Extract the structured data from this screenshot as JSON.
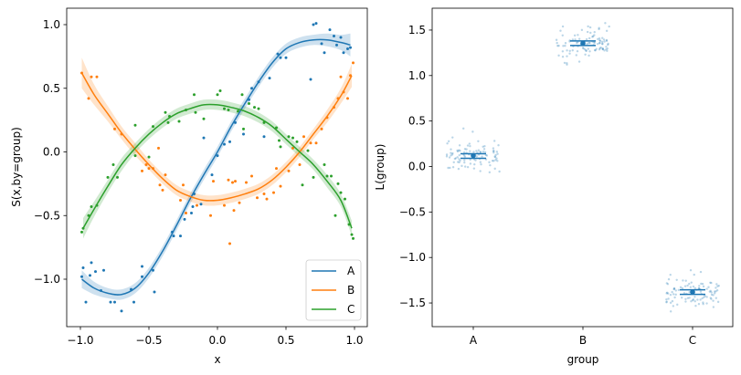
{
  "chart_data": [
    {
      "type": "line",
      "title": "",
      "xlabel": "x",
      "ylabel": "S(x,by=group)",
      "xlim": [
        -1.1,
        1.1
      ],
      "ylim": [
        -1.3,
        1.12
      ],
      "xticks": [
        -1.0,
        -0.5,
        0.0,
        0.5,
        1.0
      ],
      "xtick_labels": [
        "−1.0",
        "−0.5",
        "0.0",
        "0.5",
        "1.0"
      ],
      "yticks": [
        1.0,
        0.5,
        0.0,
        -0.5,
        -1.0
      ],
      "ytick_labels": [
        "1.0",
        "0.5",
        "0.0",
        "−0.5",
        "−1.0"
      ],
      "legend_position": "lower-right",
      "series": [
        {
          "name": "A",
          "color": "#1f77b4",
          "x": [
            -0.99,
            -0.9,
            -0.8,
            -0.7,
            -0.6,
            -0.5,
            -0.4,
            -0.3,
            -0.2,
            -0.1,
            0.0,
            0.1,
            0.2,
            0.3,
            0.4,
            0.5,
            0.6,
            0.7,
            0.8,
            0.9,
            0.97
          ],
          "y": [
            -1.0,
            -1.07,
            -1.11,
            -1.12,
            -1.07,
            -0.95,
            -0.78,
            -0.58,
            -0.37,
            -0.18,
            0.0,
            0.2,
            0.38,
            0.55,
            0.7,
            0.81,
            0.86,
            0.88,
            0.88,
            0.86,
            0.84
          ],
          "ci_halfwidth": [
            0.07,
            0.05,
            0.04,
            0.04,
            0.04,
            0.04,
            0.04,
            0.04,
            0.04,
            0.04,
            0.04,
            0.04,
            0.04,
            0.04,
            0.04,
            0.04,
            0.04,
            0.04,
            0.05,
            0.06,
            0.09
          ],
          "points": [
            [
              -0.99,
              -0.98
            ],
            [
              -0.98,
              -0.91
            ],
            [
              -0.96,
              -1.18
            ],
            [
              -0.93,
              -0.97
            ],
            [
              -0.92,
              -0.87
            ],
            [
              -0.89,
              -0.94
            ],
            [
              -0.85,
              -1.09
            ],
            [
              -0.83,
              -0.93
            ],
            [
              -0.78,
              -1.18
            ],
            [
              -0.75,
              -1.18
            ],
            [
              -0.7,
              -1.25
            ],
            [
              -0.63,
              -1.08
            ],
            [
              -0.61,
              -1.18
            ],
            [
              -0.55,
              -0.9
            ],
            [
              -0.55,
              -0.98
            ],
            [
              -0.47,
              -0.93
            ],
            [
              -0.46,
              -1.1
            ],
            [
              -0.33,
              -0.63
            ],
            [
              -0.32,
              -0.66
            ],
            [
              -0.27,
              -0.66
            ],
            [
              -0.24,
              -0.53
            ],
            [
              -0.19,
              -0.48
            ],
            [
              -0.18,
              -0.43
            ],
            [
              -0.17,
              -0.33
            ],
            [
              -0.12,
              -0.41
            ],
            [
              -0.1,
              0.11
            ],
            [
              -0.04,
              -0.18
            ],
            [
              0.0,
              -0.03
            ],
            [
              0.05,
              0.06
            ],
            [
              0.09,
              0.08
            ],
            [
              0.13,
              0.23
            ],
            [
              0.19,
              0.14
            ],
            [
              0.23,
              0.41
            ],
            [
              0.25,
              0.5
            ],
            [
              0.3,
              0.55
            ],
            [
              0.34,
              0.12
            ],
            [
              0.38,
              0.58
            ],
            [
              0.44,
              0.77
            ],
            [
              0.46,
              0.74
            ],
            [
              0.5,
              0.74
            ],
            [
              0.68,
              0.57
            ],
            [
              0.7,
              1.0
            ],
            [
              0.72,
              1.01
            ],
            [
              0.76,
              0.85
            ],
            [
              0.78,
              0.78
            ],
            [
              0.82,
              0.96
            ],
            [
              0.85,
              0.91
            ],
            [
              0.87,
              0.84
            ],
            [
              0.9,
              0.9
            ],
            [
              0.92,
              0.78
            ],
            [
              0.95,
              0.81
            ],
            [
              0.97,
              0.82
            ]
          ]
        },
        {
          "name": "B",
          "color": "#ff7f0e",
          "x": [
            -0.99,
            -0.9,
            -0.8,
            -0.7,
            -0.6,
            -0.5,
            -0.4,
            -0.3,
            -0.2,
            -0.1,
            0.0,
            0.1,
            0.2,
            0.3,
            0.4,
            0.5,
            0.6,
            0.7,
            0.8,
            0.9,
            0.98
          ],
          "y": [
            0.62,
            0.45,
            0.3,
            0.15,
            0.02,
            -0.1,
            -0.21,
            -0.3,
            -0.35,
            -0.38,
            -0.38,
            -0.36,
            -0.33,
            -0.29,
            -0.22,
            -0.12,
            0.0,
            0.14,
            0.28,
            0.44,
            0.6
          ],
          "ci_halfwidth": [
            0.12,
            0.08,
            0.06,
            0.05,
            0.05,
            0.04,
            0.04,
            0.04,
            0.04,
            0.04,
            0.04,
            0.04,
            0.04,
            0.04,
            0.04,
            0.04,
            0.04,
            0.04,
            0.05,
            0.06,
            0.09
          ],
          "points": [
            [
              -0.99,
              0.62
            ],
            [
              -0.94,
              0.42
            ],
            [
              -0.92,
              0.59
            ],
            [
              -0.88,
              0.59
            ],
            [
              -0.75,
              0.18
            ],
            [
              -0.7,
              0.14
            ],
            [
              -0.55,
              -0.15
            ],
            [
              -0.52,
              -0.1
            ],
            [
              -0.5,
              -0.13
            ],
            [
              -0.47,
              -0.13
            ],
            [
              -0.43,
              0.03
            ],
            [
              -0.42,
              -0.26
            ],
            [
              -0.4,
              -0.3
            ],
            [
              -0.38,
              -0.18
            ],
            [
              -0.27,
              -0.38
            ],
            [
              -0.25,
              -0.26
            ],
            [
              -0.23,
              -0.48
            ],
            [
              -0.15,
              -0.42
            ],
            [
              -0.05,
              -0.5
            ],
            [
              -0.03,
              -0.23
            ],
            [
              0.05,
              -0.42
            ],
            [
              0.08,
              -0.22
            ],
            [
              0.09,
              -0.72
            ],
            [
              0.11,
              -0.24
            ],
            [
              0.12,
              -0.46
            ],
            [
              0.13,
              -0.23
            ],
            [
              0.16,
              -0.4
            ],
            [
              0.21,
              -0.24
            ],
            [
              0.25,
              -0.19
            ],
            [
              0.29,
              -0.36
            ],
            [
              0.34,
              -0.33
            ],
            [
              0.36,
              -0.37
            ],
            [
              0.41,
              -0.32
            ],
            [
              0.43,
              -0.13
            ],
            [
              0.46,
              -0.27
            ],
            [
              0.52,
              -0.15
            ],
            [
              0.55,
              0.03
            ],
            [
              0.6,
              -0.1
            ],
            [
              0.63,
              0.12
            ],
            [
              0.68,
              0.07
            ],
            [
              0.72,
              0.07
            ],
            [
              0.76,
              0.18
            ],
            [
              0.8,
              0.27
            ],
            [
              0.85,
              0.35
            ],
            [
              0.88,
              0.42
            ],
            [
              0.9,
              0.59
            ],
            [
              0.92,
              0.47
            ],
            [
              0.95,
              0.42
            ],
            [
              0.97,
              0.6
            ],
            [
              0.99,
              0.7
            ]
          ]
        },
        {
          "name": "C",
          "color": "#2ca02c",
          "x": [
            -0.98,
            -0.9,
            -0.8,
            -0.7,
            -0.6,
            -0.5,
            -0.4,
            -0.3,
            -0.2,
            -0.1,
            0.0,
            0.1,
            0.2,
            0.3,
            0.4,
            0.5,
            0.6,
            0.7,
            0.8,
            0.9,
            0.98
          ],
          "y": [
            -0.6,
            -0.45,
            -0.27,
            -0.1,
            0.03,
            0.14,
            0.23,
            0.3,
            0.34,
            0.37,
            0.37,
            0.35,
            0.32,
            0.27,
            0.2,
            0.1,
            0.0,
            -0.1,
            -0.23,
            -0.38,
            -0.6
          ],
          "ci_halfwidth": [
            0.08,
            0.06,
            0.05,
            0.05,
            0.04,
            0.04,
            0.04,
            0.04,
            0.04,
            0.04,
            0.04,
            0.04,
            0.04,
            0.04,
            0.04,
            0.04,
            0.04,
            0.04,
            0.05,
            0.05,
            0.06
          ],
          "points": [
            [
              -0.99,
              -0.63
            ],
            [
              -0.98,
              -0.6
            ],
            [
              -0.94,
              -0.5
            ],
            [
              -0.92,
              -0.43
            ],
            [
              -0.88,
              -0.42
            ],
            [
              -0.8,
              -0.2
            ],
            [
              -0.76,
              -0.1
            ],
            [
              -0.73,
              -0.2
            ],
            [
              -0.6,
              0.21
            ],
            [
              -0.6,
              -0.03
            ],
            [
              -0.5,
              -0.04
            ],
            [
              -0.47,
              0.2
            ],
            [
              -0.38,
              0.31
            ],
            [
              -0.36,
              0.23
            ],
            [
              -0.35,
              0.28
            ],
            [
              -0.28,
              0.24
            ],
            [
              -0.23,
              0.33
            ],
            [
              -0.17,
              0.45
            ],
            [
              -0.16,
              0.31
            ],
            [
              -0.1,
              0.26
            ],
            [
              0.0,
              0.45
            ],
            [
              0.02,
              0.48
            ],
            [
              0.05,
              0.34
            ],
            [
              0.08,
              0.33
            ],
            [
              0.15,
              0.32
            ],
            [
              0.18,
              0.45
            ],
            [
              0.19,
              0.18
            ],
            [
              0.23,
              0.38
            ],
            [
              0.27,
              0.35
            ],
            [
              0.3,
              0.34
            ],
            [
              0.34,
              0.23
            ],
            [
              0.43,
              0.19
            ],
            [
              0.45,
              0.09
            ],
            [
              0.46,
              0.04
            ],
            [
              0.52,
              0.12
            ],
            [
              0.55,
              0.11
            ],
            [
              0.58,
              0.08
            ],
            [
              0.62,
              -0.26
            ],
            [
              0.66,
              0.01
            ],
            [
              0.7,
              -0.2
            ],
            [
              0.78,
              -0.1
            ],
            [
              0.8,
              -0.19
            ],
            [
              0.83,
              -0.19
            ],
            [
              0.86,
              -0.5
            ],
            [
              0.88,
              -0.25
            ],
            [
              0.9,
              -0.32
            ],
            [
              0.93,
              -0.37
            ],
            [
              0.96,
              -0.57
            ],
            [
              0.98,
              -0.65
            ],
            [
              0.99,
              -0.68
            ]
          ]
        }
      ]
    },
    {
      "type": "scatter",
      "title": "",
      "xlabel": "group",
      "ylabel": "L(group)",
      "categories": [
        "A",
        "B",
        "C"
      ],
      "ylim": [
        -1.76,
        1.74
      ],
      "yticks": [
        1.5,
        1.0,
        0.5,
        0.0,
        -0.5,
        -1.0,
        -1.5
      ],
      "ytick_labels": [
        "1.5",
        "1.0",
        "0.5",
        "0.0",
        "−0.5",
        "−1.0",
        "−1.5"
      ],
      "color": "#1f77b4",
      "estimates": [
        0.12,
        1.355,
        -1.38
      ],
      "ci_lower": [
        0.09,
        1.33,
        -1.405
      ],
      "ci_upper": [
        0.14,
        1.38,
        -1.355
      ],
      "jitter_points_per_group": 100,
      "jitter_spread": 0.09
    }
  ]
}
